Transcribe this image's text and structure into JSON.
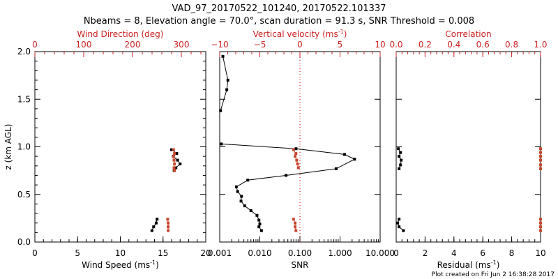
{
  "header": {
    "title": "VAD_97_20170522_101240, 20170522.101337",
    "subtitle": "Nbeams = 8, Elevation angle = 70.0°, scan duration = 91.3 s, SNR Threshold = 0.008"
  },
  "footer": {
    "plot_created": "Plot created on Fri Jun  2 16:38:28 2017"
  },
  "colors": {
    "axis": "#000000",
    "accent_red": "#cc2222",
    "point_black": "#000000",
    "point_red": "#c8472e"
  },
  "chart_data": [
    {
      "type": "scatter",
      "panel": "wind",
      "ylabel": "z (km AGL)",
      "ylabel_sup": "",
      "ylim": [
        0,
        2.0
      ],
      "yticks": [
        0.0,
        0.5,
        1.0,
        1.5,
        2.0
      ],
      "yticklabels": [
        "0.0",
        "0.5",
        "1.0",
        "1.5",
        "2.0"
      ],
      "bottom_axis": {
        "label": "Wind Speed (ms",
        "label_sup": "-1",
        "label_end": ")",
        "lim": [
          0,
          20
        ],
        "ticks": [
          0,
          5,
          10,
          15,
          20
        ],
        "ticklabels": [
          "0",
          "5",
          "10",
          "15",
          "20"
        ],
        "scale": "linear"
      },
      "top_axis": {
        "label": "Wind Direction (deg)",
        "label_sup": "",
        "label_end": "",
        "lim": [
          0,
          350
        ],
        "ticks": [
          0,
          100,
          200,
          300
        ],
        "ticklabels": [
          "0",
          "100",
          "200",
          "300"
        ],
        "scale": "linear"
      },
      "series": [
        {
          "name": "",
          "axis": "bottom",
          "color": "#000000",
          "line": true,
          "points": [
            [
              16.0,
              0.97
            ],
            [
              16.6,
              0.93
            ],
            [
              16.2,
              0.9
            ],
            [
              16.7,
              0.86
            ],
            [
              17.0,
              0.82
            ],
            [
              16.5,
              0.78
            ],
            [
              16.3,
              0.75
            ]
          ]
        },
        {
          "name": "",
          "axis": "bottom",
          "color": "#000000",
          "line": true,
          "points": [
            [
              14.3,
              0.24
            ],
            [
              14.2,
              0.2
            ],
            [
              13.9,
              0.16
            ],
            [
              13.7,
              0.12
            ]
          ]
        },
        {
          "name": "",
          "axis": "top",
          "color": "#c8472e",
          "line": true,
          "points": [
            [
              284,
              0.97
            ],
            [
              286,
              0.93
            ],
            [
              284,
              0.9
            ],
            [
              285,
              0.86
            ],
            [
              286,
              0.82
            ],
            [
              285,
              0.78
            ],
            [
              286,
              0.75
            ]
          ]
        },
        {
          "name": "",
          "axis": "top",
          "color": "#c8472e",
          "line": true,
          "points": [
            [
              272,
              0.24
            ],
            [
              273,
              0.2
            ],
            [
              273,
              0.16
            ],
            [
              273,
              0.12
            ]
          ]
        }
      ]
    },
    {
      "type": "scatter",
      "panel": "snr",
      "ylim": [
        0,
        2.0
      ],
      "bottom_axis": {
        "label": "SNR",
        "label_sup": "",
        "label_end": "",
        "lim": [
          0.001,
          10
        ],
        "ticks": [
          0.001,
          0.01,
          0.1,
          1,
          10
        ],
        "ticklabels": [
          "0.001",
          "0.010",
          "0.100",
          "1.000",
          "10.000"
        ],
        "scale": "log"
      },
      "top_axis": {
        "label": "Vertical velocity (ms",
        "label_sup": "-1",
        "label_end": ")",
        "lim": [
          -10,
          10
        ],
        "ticks": [
          -10,
          -5,
          0,
          5,
          10
        ],
        "ticklabels": [
          "−10",
          "−5",
          "0",
          "5",
          "10"
        ],
        "scale": "linear"
      },
      "reference_line": {
        "axis": "top",
        "value": 0,
        "style": "dotted",
        "color": "#cc2222"
      },
      "series": [
        {
          "name": "",
          "axis": "bottom",
          "color": "#000000",
          "line": true,
          "points": [
            [
              0.0012,
              1.95
            ],
            [
              0.0016,
              1.7
            ],
            [
              0.0015,
              1.6
            ],
            [
              0.00105,
              1.38
            ]
          ]
        },
        {
          "name": "",
          "axis": "bottom",
          "color": "#000000",
          "line": true,
          "points": [
            [
              0.0011,
              1.03
            ],
            [
              0.08,
              0.98
            ],
            [
              1.3,
              0.92
            ],
            [
              2.3,
              0.87
            ],
            [
              0.8,
              0.77
            ],
            [
              0.045,
              0.7
            ],
            [
              0.005,
              0.65
            ],
            [
              0.0026,
              0.58
            ],
            [
              0.0028,
              0.53
            ],
            [
              0.0035,
              0.48
            ],
            [
              0.0034,
              0.43
            ],
            [
              0.0042,
              0.38
            ],
            [
              0.006,
              0.33
            ],
            [
              0.0085,
              0.28
            ],
            [
              0.0095,
              0.23
            ],
            [
              0.01,
              0.19
            ],
            [
              0.0095,
              0.16
            ],
            [
              0.011,
              0.12
            ]
          ]
        },
        {
          "name": "",
          "axis": "top",
          "color": "#c8472e",
          "line": true,
          "points": [
            [
              -0.8,
              0.97
            ],
            [
              -0.5,
              0.93
            ],
            [
              -0.6,
              0.9
            ],
            [
              -0.4,
              0.86
            ],
            [
              -0.3,
              0.82
            ],
            [
              -0.2,
              0.78
            ]
          ]
        },
        {
          "name": "",
          "axis": "top",
          "color": "#c8472e",
          "line": true,
          "points": [
            [
              -0.8,
              0.24
            ],
            [
              -0.6,
              0.2
            ],
            [
              -0.6,
              0.16
            ],
            [
              -0.5,
              0.12
            ]
          ]
        }
      ]
    },
    {
      "type": "scatter",
      "panel": "correlation",
      "ylim": [
        0,
        2.0
      ],
      "bottom_axis": {
        "label": "Residual (ms",
        "label_sup": "-1",
        "label_end": ")",
        "lim": [
          0,
          10
        ],
        "ticks": [
          0,
          2,
          4,
          6,
          8,
          10
        ],
        "ticklabels": [
          "0",
          "2",
          "4",
          "6",
          "8",
          "10"
        ],
        "scale": "linear"
      },
      "top_axis": {
        "label": "Correlation",
        "label_sup": "",
        "label_end": "",
        "lim": [
          0,
          1
        ],
        "ticks": [
          0,
          0.2,
          0.4,
          0.6,
          0.8,
          1.0
        ],
        "ticklabels": [
          "0.0",
          "0.2",
          "0.4",
          "0.6",
          "0.8",
          "1.0"
        ],
        "scale": "linear"
      },
      "series": [
        {
          "name": "",
          "axis": "bottom",
          "color": "#000000",
          "line": true,
          "points": [
            [
              0.15,
              0.98
            ],
            [
              0.3,
              0.94
            ],
            [
              0.2,
              0.9
            ],
            [
              0.35,
              0.86
            ],
            [
              0.3,
              0.81
            ],
            [
              0.2,
              0.77
            ]
          ]
        },
        {
          "name": "",
          "axis": "bottom",
          "color": "#000000",
          "line": true,
          "points": [
            [
              0.2,
              0.24
            ],
            [
              0.1,
              0.2
            ],
            [
              0.2,
              0.16
            ],
            [
              0.5,
              0.12
            ]
          ]
        },
        {
          "name": "",
          "axis": "top",
          "color": "#c8472e",
          "line": false,
          "points": [
            [
              1.0,
              0.98
            ],
            [
              1.0,
              0.94
            ],
            [
              1.0,
              0.9
            ],
            [
              1.0,
              0.86
            ],
            [
              1.0,
              0.81
            ],
            [
              1.0,
              0.77
            ]
          ]
        },
        {
          "name": "",
          "axis": "top",
          "color": "#c8472e",
          "line": false,
          "points": [
            [
              1.0,
              0.24
            ],
            [
              1.0,
              0.2
            ],
            [
              1.0,
              0.16
            ],
            [
              1.0,
              0.12
            ]
          ]
        }
      ]
    }
  ]
}
